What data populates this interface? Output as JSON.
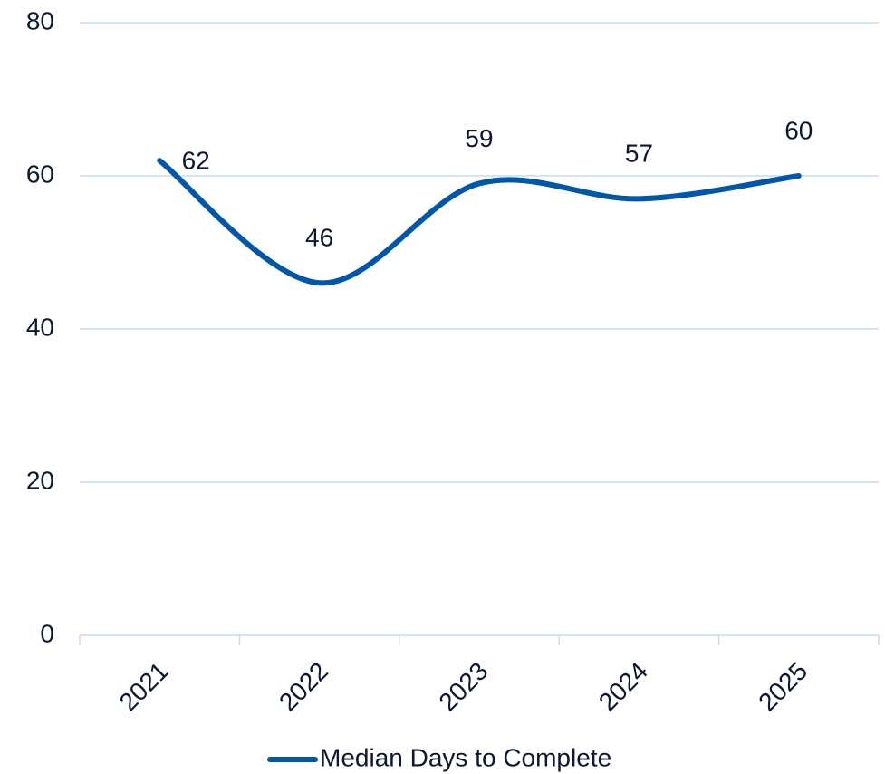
{
  "chart_data": {
    "type": "line",
    "categories": [
      "2021",
      "2022",
      "2023",
      "2024",
      "2025"
    ],
    "series": [
      {
        "name": "Median Days to Complete",
        "color": "#0056a8",
        "values": [
          62,
          46,
          59,
          57,
          60
        ]
      }
    ],
    "ylim": [
      0,
      80
    ],
    "yticks": [
      0,
      20,
      40,
      60,
      80
    ],
    "grid": true,
    "smooth": true,
    "legend": "bottom"
  }
}
